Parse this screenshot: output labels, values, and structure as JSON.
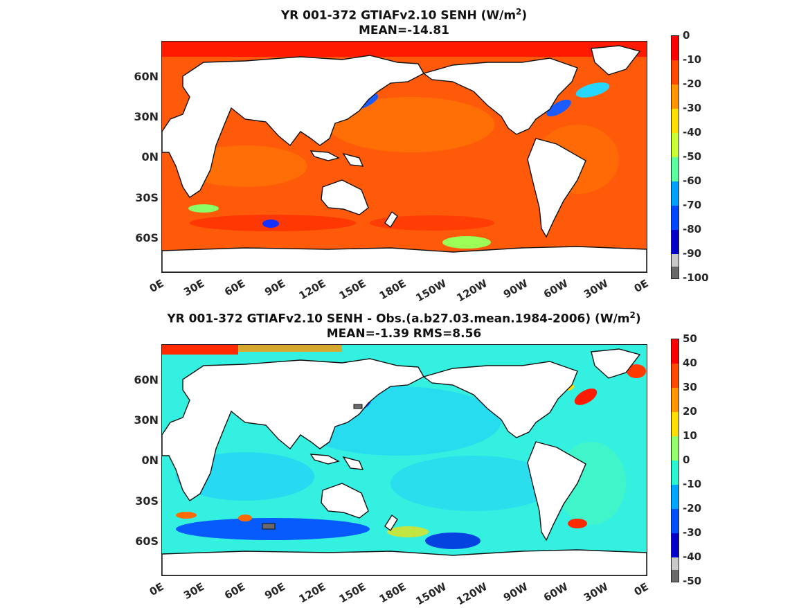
{
  "panels": [
    {
      "title_line1_prefix": "YR 001-372 GTIAFv2.10  SENH (W/m",
      "title_line1_sup": "2",
      "title_line1_suffix": ")",
      "title_line2": "MEAN=-14.81",
      "colorbar_labels": [
        "0",
        "-10",
        "-20",
        "-30",
        "-40",
        "-50",
        "-60",
        "-70",
        "-80",
        "-90",
        "-100"
      ],
      "colorbar_colors": [
        "#ff0000",
        "#ff4a00",
        "#ff9600",
        "#ffdf00",
        "#c8ff37",
        "#5dffa1",
        "#00a0ff",
        "#0048ff",
        "#0000c9",
        "#c8c8c8",
        "#696969"
      ],
      "ocean_color": "#ff5a0a"
    },
    {
      "title_line1_prefix": "YR 001-372 GTIAFv2.10 SENH - Obs.(a.b27.03.mean.1984-2006) (W/m",
      "title_line1_sup": "2",
      "title_line1_suffix": ")",
      "title_line2": "MEAN=-1.39 RMS=8.56",
      "colorbar_labels": [
        "50",
        "40",
        "30",
        "20",
        "10",
        "0",
        "-10",
        "-20",
        "-30",
        "-40",
        "-50"
      ],
      "colorbar_colors": [
        "#ff0000",
        "#ff4a00",
        "#ff9600",
        "#ffdf00",
        "#93ff6b",
        "#2cf5d2",
        "#00a6ff",
        "#0050ff",
        "#0000c9",
        "#c8c8c8",
        "#696969"
      ],
      "ocean_color": "#33f0e0"
    }
  ],
  "axes": {
    "y_labels": [
      "60N",
      "30N",
      "0N",
      "30S",
      "60S"
    ],
    "x_labels": [
      "0E",
      "30E",
      "60E",
      "90E",
      "120E",
      "150E",
      "180E",
      "150W",
      "120W",
      "90W",
      "60W",
      "30W",
      "0E"
    ]
  }
}
